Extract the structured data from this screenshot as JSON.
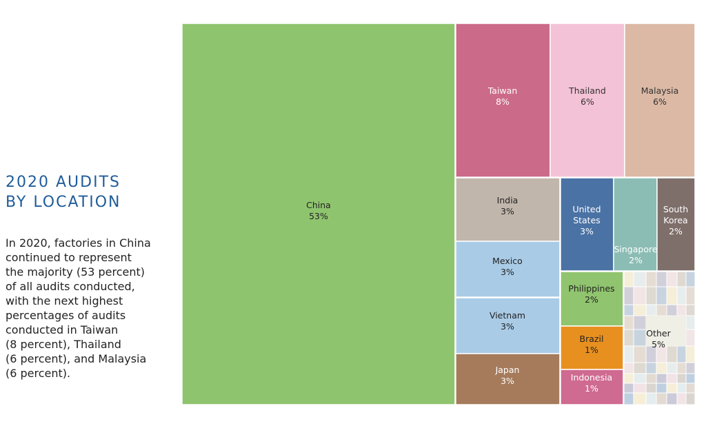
{
  "sidebar": {
    "title_lines": [
      "2020 AUDITS",
      "BY LOCATION"
    ],
    "body_lines": [
      "In 2020, factories in China",
      "continued to represent",
      "the majority (53 percent)",
      "of all audits conducted,",
      "with the next highest",
      "percentages of audits",
      "conducted in Taiwan",
      "(8 percent), Thailand",
      "(6 percent), and Malaysia",
      "(6 percent)."
    ]
  },
  "chart_data": {
    "type": "treemap",
    "unit": "%",
    "items": [
      {
        "name": "China",
        "value": 53,
        "label_lines": [
          "China",
          "53%"
        ],
        "color": "#8fc46e",
        "text_color": "#222222"
      },
      {
        "name": "Taiwan",
        "value": 8,
        "label_lines": [
          "Taiwan",
          "8%"
        ],
        "color": "#cc6a8a",
        "text_color": "#ffffff"
      },
      {
        "name": "Thailand",
        "value": 6,
        "label_lines": [
          "Thailand",
          "6%"
        ],
        "color": "#f4c2d6",
        "text_color": "#333333"
      },
      {
        "name": "Malaysia",
        "value": 6,
        "label_lines": [
          "Malaysia",
          "6%"
        ],
        "color": "#dbb9a5",
        "text_color": "#333333"
      },
      {
        "name": "India",
        "value": 3,
        "label_lines": [
          "India",
          "3%"
        ],
        "color": "#c1b6ab",
        "text_color": "#222222"
      },
      {
        "name": "United States",
        "value": 3,
        "label_lines": [
          "United",
          "States",
          "3%"
        ],
        "color": "#4a72a4",
        "text_color": "#ffffff"
      },
      {
        "name": "Singapore",
        "value": 2,
        "label_lines": [
          "Singapore",
          "2%"
        ],
        "color": "#8bbdb4",
        "text_color": "#ffffff"
      },
      {
        "name": "South Korea",
        "value": 2,
        "label_lines": [
          "South",
          "Korea",
          "2%"
        ],
        "color": "#7e6f6a",
        "text_color": "#ffffff"
      },
      {
        "name": "Mexico",
        "value": 3,
        "label_lines": [
          "Mexico",
          "3%"
        ],
        "color": "#a9cbe6",
        "text_color": "#222222"
      },
      {
        "name": "Philippines",
        "value": 2,
        "label_lines": [
          "Philippines",
          "2%"
        ],
        "color": "#90c46e",
        "text_color": "#222222"
      },
      {
        "name": "Vietnam",
        "value": 3,
        "label_lines": [
          "Vietnam",
          "3%"
        ],
        "color": "#a9cbe6",
        "text_color": "#222222"
      },
      {
        "name": "Brazil",
        "value": 1,
        "label_lines": [
          "Brazil",
          "1%"
        ],
        "color": "#e8901f",
        "text_color": "#222222"
      },
      {
        "name": "Japan",
        "value": 3,
        "label_lines": [
          "Japan",
          "3%"
        ],
        "color": "#a57b5c",
        "text_color": "#ffffff"
      },
      {
        "name": "Indonesia",
        "value": 1,
        "label_lines": [
          "Indonesia",
          "1%"
        ],
        "color": "#cf6a90",
        "text_color": "#ffffff"
      },
      {
        "name": "Other",
        "value": 5,
        "label_lines": [
          "Other",
          "5%"
        ],
        "color": "#f1ece0",
        "text_color": "#222222"
      }
    ],
    "other_tile_colors": [
      "#f7efd6",
      "#e3e8f0",
      "#eadff0",
      "#dde9d8",
      "#f3e3e8",
      "#e9e6e0",
      "#dfe3ea",
      "#f6e9d3",
      "#e4eef0",
      "#f2e0e6",
      "#d9e6e8",
      "#ece3d6",
      "#d8d4ce",
      "#e9dfe8",
      "#c9d8e6",
      "#f0ead6",
      "#e2d9d0",
      "#dde4ee",
      "#cfe3da",
      "#f4dcdc",
      "#b9cde0",
      "#e8c6c6",
      "#f4a6a0",
      "#e05050",
      "#c7c7d8",
      "#a9c8e0",
      "#9ad0c0",
      "#e8a0c8"
    ]
  }
}
